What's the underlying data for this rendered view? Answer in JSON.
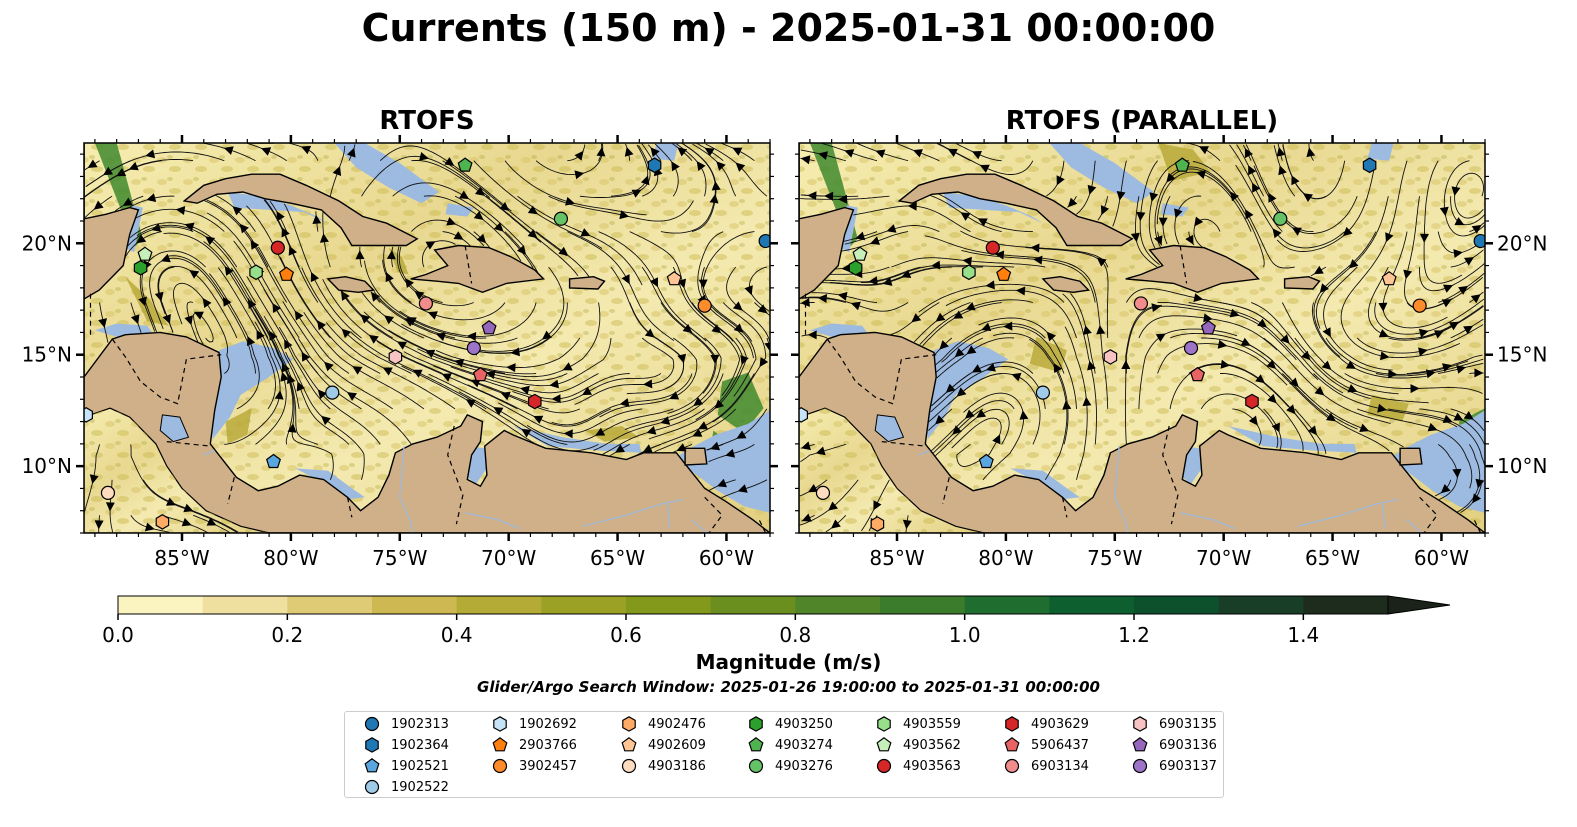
{
  "title": "Currents (150 m) - 2025-01-31 00:00:00",
  "panels": [
    {
      "title": "RTOFS"
    },
    {
      "title": "RTOFS (PARALLEL)"
    }
  ],
  "map": {
    "lon_range": [
      -89.5,
      -58
    ],
    "lat_range": [
      7,
      24.5
    ],
    "x_ticks": [
      "85°W",
      "80°W",
      "75°W",
      "70°W",
      "65°W",
      "60°W"
    ],
    "y_ticks": [
      "20°N",
      "15°N",
      "10°N"
    ],
    "colors": {
      "land": "#cfb088",
      "shallow_water": "#9dbae0",
      "low_speed": "#f7efb8",
      "mid_speed": "#b9a93a",
      "high_speed": "#3f8a2e"
    }
  },
  "colorbar": {
    "title": "Magnitude (m/s)",
    "range": [
      0.0,
      1.5
    ],
    "tick_labels": [
      "0.0",
      "0.2",
      "0.4",
      "0.6",
      "0.8",
      "1.0",
      "1.2",
      "1.4"
    ],
    "colors": [
      "#fbf4c0",
      "#efe0a0",
      "#dfcb76",
      "#cdb851",
      "#b4ab36",
      "#9aa124",
      "#83991c",
      "#6a8f1e",
      "#51852a",
      "#3b7c2c",
      "#1f6e30",
      "#0e5f30",
      "#0c512c",
      "#183e27",
      "#1e2c1d",
      "#1b2219"
    ]
  },
  "search_window": "Glider/Argo Search Window: 2025-01-26 19:00:00 to 2025-01-31 00:00:00",
  "legend": [
    {
      "id": "1902313",
      "marker": "circle",
      "color": "#1f77b4"
    },
    {
      "id": "1902364",
      "marker": "hexagon",
      "color": "#1f77b4"
    },
    {
      "id": "1902521",
      "marker": "pentagon",
      "color": "#5aa6de"
    },
    {
      "id": "1902522",
      "marker": "circle",
      "color": "#9fcae8"
    },
    {
      "id": "1902692",
      "marker": "hexagon",
      "color": "#c6e3f7"
    },
    {
      "id": "2903766",
      "marker": "pentagon",
      "color": "#ff7f0e"
    },
    {
      "id": "3902457",
      "marker": "circle",
      "color": "#ff8c2a"
    },
    {
      "id": "4902476",
      "marker": "hexagon",
      "color": "#ffab66"
    },
    {
      "id": "4902609",
      "marker": "pentagon",
      "color": "#ffc594"
    },
    {
      "id": "4903186",
      "marker": "circle",
      "color": "#ffdcc0"
    },
    {
      "id": "4903250",
      "marker": "hexagon",
      "color": "#2ca02c"
    },
    {
      "id": "4903274",
      "marker": "pentagon",
      "color": "#4fb34f"
    },
    {
      "id": "4903276",
      "marker": "circle",
      "color": "#66c266"
    },
    {
      "id": "4903559",
      "marker": "hexagon",
      "color": "#98df8a"
    },
    {
      "id": "4903562",
      "marker": "pentagon",
      "color": "#c6efba"
    },
    {
      "id": "4903563",
      "marker": "circle",
      "color": "#d62728"
    },
    {
      "id": "4903629",
      "marker": "hexagon",
      "color": "#d62728"
    },
    {
      "id": "5906437",
      "marker": "pentagon",
      "color": "#e86464"
    },
    {
      "id": "6903134",
      "marker": "circle",
      "color": "#f08c8c"
    },
    {
      "id": "6903135",
      "marker": "hexagon",
      "color": "#f7c3c3"
    },
    {
      "id": "6903136",
      "marker": "pentagon",
      "color": "#9467bd"
    },
    {
      "id": "6903137",
      "marker": "circle",
      "color": "#9e74c9"
    }
  ],
  "floats": {
    "left": [
      {
        "id": "1902313",
        "lon": -58.2,
        "lat": 20.1
      },
      {
        "id": "1902364",
        "lon": -63.3,
        "lat": 23.5
      },
      {
        "id": "1902521",
        "lon": -80.8,
        "lat": 10.2
      },
      {
        "id": "1902522",
        "lon": -78.1,
        "lat": 13.3
      },
      {
        "id": "1902692",
        "lon": -89.4,
        "lat": 12.3
      },
      {
        "id": "2903766",
        "lon": -80.2,
        "lat": 18.6
      },
      {
        "id": "3902457",
        "lon": -61.0,
        "lat": 17.2
      },
      {
        "id": "4902476",
        "lon": -85.9,
        "lat": 7.5
      },
      {
        "id": "4902609",
        "lon": -62.4,
        "lat": 18.4
      },
      {
        "id": "4903186",
        "lon": -88.4,
        "lat": 8.8
      },
      {
        "id": "4903250",
        "lon": -86.9,
        "lat": 18.9
      },
      {
        "id": "4903274",
        "lon": -72.0,
        "lat": 23.5
      },
      {
        "id": "4903276",
        "lon": -67.6,
        "lat": 21.1
      },
      {
        "id": "4903559",
        "lon": -81.6,
        "lat": 18.7
      },
      {
        "id": "4903562",
        "lon": -86.7,
        "lat": 19.5
      },
      {
        "id": "4903563",
        "lon": -80.6,
        "lat": 19.8
      },
      {
        "id": "4903629",
        "lon": -68.8,
        "lat": 12.9
      },
      {
        "id": "5906437",
        "lon": -71.3,
        "lat": 14.1
      },
      {
        "id": "6903134",
        "lon": -73.8,
        "lat": 17.3
      },
      {
        "id": "6903135",
        "lon": -75.2,
        "lat": 14.9
      },
      {
        "id": "6903136",
        "lon": -70.9,
        "lat": 16.2
      },
      {
        "id": "6903137",
        "lon": -71.6,
        "lat": 15.3
      }
    ],
    "right": [
      {
        "id": "1902313",
        "lon": -58.2,
        "lat": 20.1
      },
      {
        "id": "1902364",
        "lon": -63.3,
        "lat": 23.5
      },
      {
        "id": "1902521",
        "lon": -80.9,
        "lat": 10.2
      },
      {
        "id": "1902522",
        "lon": -78.3,
        "lat": 13.3
      },
      {
        "id": "1902692",
        "lon": -89.4,
        "lat": 12.3
      },
      {
        "id": "2903766",
        "lon": -80.1,
        "lat": 18.6
      },
      {
        "id": "3902457",
        "lon": -61.0,
        "lat": 17.2
      },
      {
        "id": "4902476",
        "lon": -85.9,
        "lat": 7.4
      },
      {
        "id": "4902609",
        "lon": -62.4,
        "lat": 18.4
      },
      {
        "id": "4903186",
        "lon": -88.4,
        "lat": 8.8
      },
      {
        "id": "4903250",
        "lon": -86.9,
        "lat": 18.9
      },
      {
        "id": "4903274",
        "lon": -71.9,
        "lat": 23.5
      },
      {
        "id": "4903276",
        "lon": -67.4,
        "lat": 21.1
      },
      {
        "id": "4903559",
        "lon": -81.7,
        "lat": 18.7
      },
      {
        "id": "4903562",
        "lon": -86.7,
        "lat": 19.5
      },
      {
        "id": "4903563",
        "lon": -80.6,
        "lat": 19.8
      },
      {
        "id": "4903629",
        "lon": -68.7,
        "lat": 12.9
      },
      {
        "id": "5906437",
        "lon": -71.2,
        "lat": 14.1
      },
      {
        "id": "6903134",
        "lon": -73.8,
        "lat": 17.3
      },
      {
        "id": "6903135",
        "lon": -75.2,
        "lat": 14.9
      },
      {
        "id": "6903136",
        "lon": -70.7,
        "lat": 16.2
      },
      {
        "id": "6903137",
        "lon": -71.5,
        "lat": 15.3
      }
    ]
  }
}
